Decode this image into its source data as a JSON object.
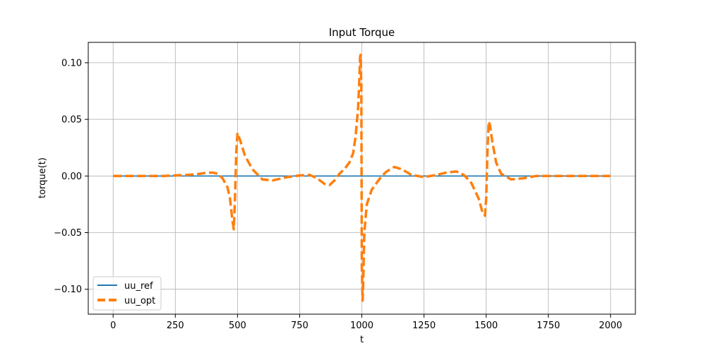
{
  "chart_data": {
    "type": "line",
    "title": "Input Torque",
    "xlabel": "t",
    "ylabel": "torque(t)",
    "xlim": [
      -100,
      2100
    ],
    "ylim": [
      -0.122,
      0.118
    ],
    "xticks": [
      0,
      250,
      500,
      750,
      1000,
      1250,
      1500,
      1750,
      2000
    ],
    "xtick_labels": [
      "0",
      "250",
      "500",
      "750",
      "1000",
      "1250",
      "1500",
      "1750",
      "2000"
    ],
    "yticks": [
      -0.1,
      -0.05,
      0.0,
      0.05,
      0.1
    ],
    "ytick_labels": [
      "−0.10",
      "−0.05",
      "0.00",
      "0.05",
      "0.10"
    ],
    "grid": true,
    "legend": "lower-left",
    "series": [
      {
        "name": "uu_ref",
        "color": "#1f77b4",
        "style": "solid",
        "x": [
          0,
          500,
          1000,
          1500,
          1999
        ],
        "y": [
          0,
          0,
          0,
          0,
          0
        ]
      },
      {
        "name": "uu_opt",
        "color": "#ff7f0e",
        "style": "dashed",
        "x": [
          0,
          100,
          200,
          300,
          350,
          380,
          400,
          420,
          440,
          460,
          470,
          480,
          485,
          490,
          495,
          500,
          510,
          530,
          560,
          600,
          640,
          700,
          750,
          790,
          820,
          850,
          870,
          890,
          910,
          930,
          950,
          965,
          975,
          985,
          990,
          993,
          995,
          998,
          1000,
          1003,
          1005,
          1010,
          1020,
          1040,
          1060,
          1080,
          1100,
          1130,
          1160,
          1200,
          1250,
          1300,
          1340,
          1380,
          1410,
          1440,
          1470,
          1485,
          1495,
          1500,
          1505,
          1510,
          1515,
          1525,
          1540,
          1560,
          1600,
          1650,
          1700,
          1800,
          1900,
          1999
        ],
        "y": [
          0,
          0,
          0,
          0.001,
          0.002,
          0.003,
          0.003,
          0.002,
          -0.002,
          -0.01,
          -0.02,
          -0.04,
          -0.047,
          -0.02,
          0.02,
          0.038,
          0.032,
          0.018,
          0.006,
          -0.003,
          -0.004,
          -0.001,
          0.0005,
          0.001,
          -0.002,
          -0.007,
          -0.008,
          -0.004,
          0.002,
          0.006,
          0.012,
          0.02,
          0.035,
          0.06,
          0.085,
          0.105,
          0.107,
          0.08,
          -0.08,
          -0.11,
          -0.1,
          -0.05,
          -0.025,
          -0.012,
          -0.006,
          0,
          0.004,
          0.008,
          0.006,
          0.001,
          -0.001,
          0.001,
          0.003,
          0.004,
          0.001,
          -0.006,
          -0.02,
          -0.032,
          -0.035,
          -0.02,
          0.02,
          0.048,
          0.045,
          0.03,
          0.012,
          0.002,
          -0.003,
          -0.002,
          0,
          0,
          0,
          0
        ]
      }
    ]
  }
}
